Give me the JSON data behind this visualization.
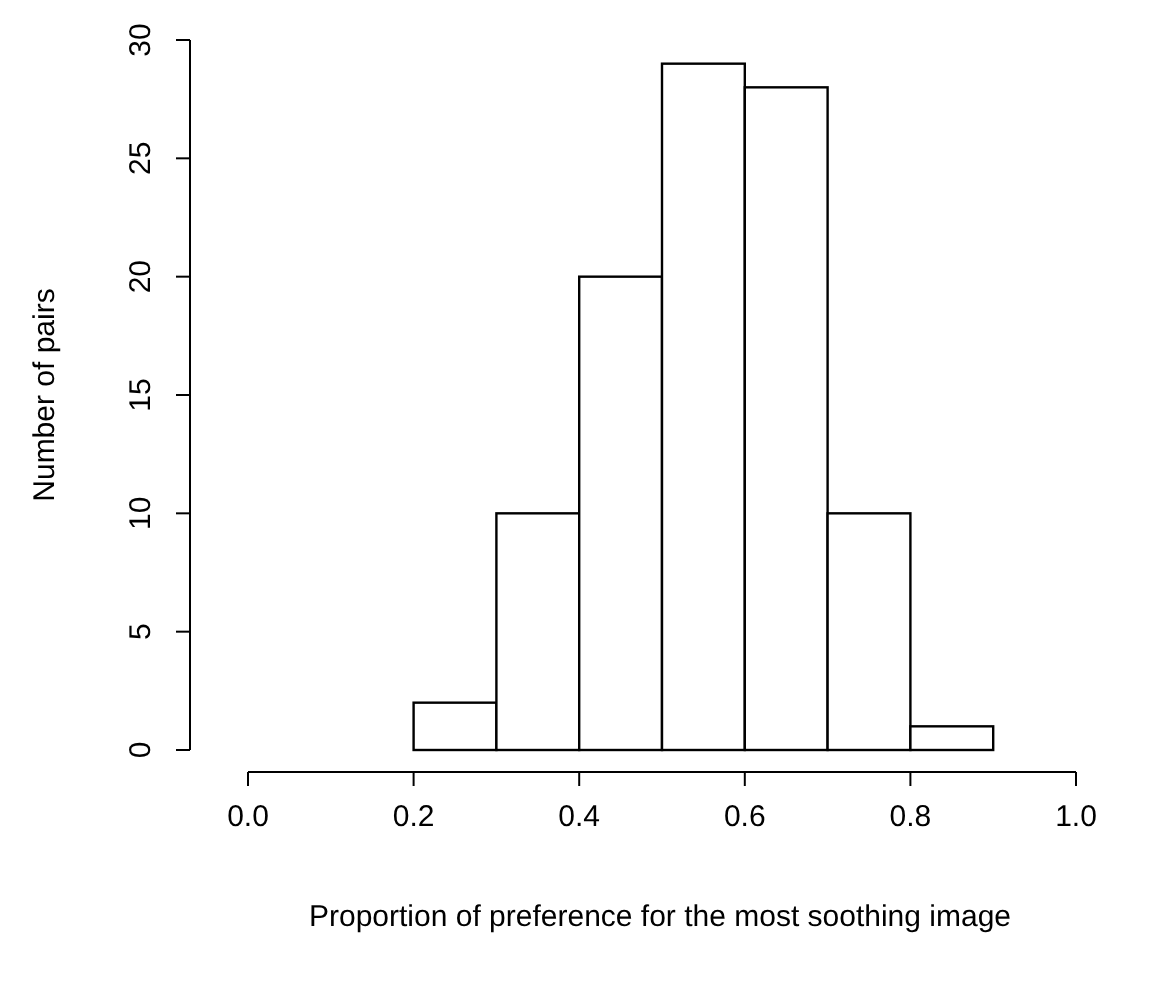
{
  "chart_data": {
    "type": "histogram",
    "xlabel": "Proportion of preference for the most soothing image",
    "ylabel": "Number of pairs",
    "bins": [
      0.2,
      0.3,
      0.4,
      0.5,
      0.6,
      0.7,
      0.8,
      0.9
    ],
    "values": [
      2,
      10,
      20,
      29,
      28,
      10,
      1
    ],
    "color": "#ffffff",
    "xlim": [
      0,
      1
    ],
    "xticks": [
      {
        "value": 0,
        "label": "0.0"
      },
      {
        "value": 0.2,
        "label": "0.2"
      },
      {
        "value": 0.4,
        "label": "0.4"
      },
      {
        "value": 0.6,
        "label": "0.6"
      },
      {
        "value": 0.8,
        "label": "0.8"
      },
      {
        "value": 1,
        "label": "1.0"
      }
    ],
    "ylim": [
      0,
      30
    ],
    "yticks": [
      0,
      5,
      10,
      15,
      20,
      25,
      30
    ],
    "grid": false
  }
}
